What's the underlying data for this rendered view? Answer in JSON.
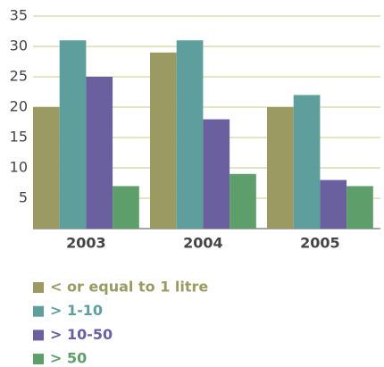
{
  "chart_data": {
    "type": "bar",
    "categories": [
      "2003",
      "2004",
      "2005"
    ],
    "series": [
      {
        "name": "< or equal to 1 litre",
        "color": "#9b9a63",
        "values": [
          20,
          29,
          20
        ]
      },
      {
        "name": "> 1-10",
        "color": "#5e9f9d",
        "values": [
          31,
          31,
          22
        ]
      },
      {
        "name": "> 10-50",
        "color": "#6a5f9f",
        "values": [
          25,
          18,
          8
        ]
      },
      {
        "name": "> 50",
        "color": "#5e9e6b",
        "values": [
          7,
          9,
          7
        ]
      }
    ],
    "ylim": [
      0,
      35
    ],
    "yticks": [
      5,
      10,
      15,
      20,
      25,
      30,
      35
    ],
    "grid": true
  }
}
